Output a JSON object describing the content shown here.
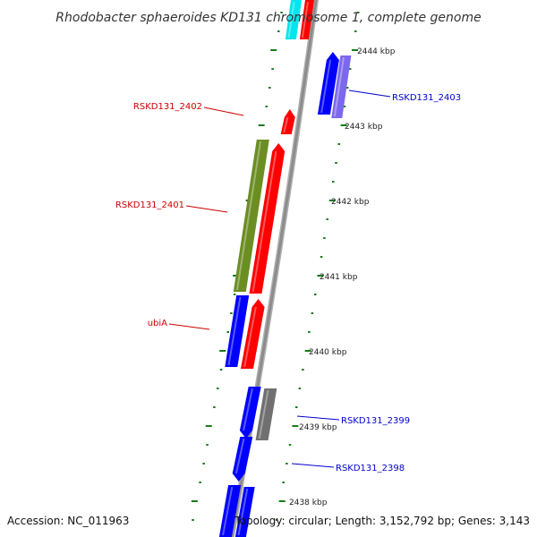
{
  "title": "Rhodobacter sphaeroides KD131 chromosome 1, complete genome",
  "footer": {
    "accession": "Accession: NC_011963",
    "topology": "Topology: circular; Length: 3,152,792 bp; Genes: 3,143"
  },
  "colors": {
    "backbone": "#8c8c8c",
    "tick": "#1a7a1a",
    "forward_gene": "#ff0000",
    "reverse_gene": "#0000ff",
    "green_gene": "#6b8e23",
    "lavender_gene": "#7b68ee",
    "gray_gene": "#707070",
    "cyan_gene": "#00e5ee",
    "label_red": "#cc0000",
    "label_blue": "#0000cc"
  },
  "scale": {
    "unit": "kbp",
    "labels": [
      "2444 kbp",
      "2443 kbp",
      "2442 kbp",
      "2441 kbp",
      "2440 kbp",
      "2439 kbp",
      "2438 kbp"
    ]
  },
  "gene_labels": [
    {
      "text": "RSKD131_2403",
      "strand": "reverse"
    },
    {
      "text": "RSKD131_2402",
      "strand": "forward"
    },
    {
      "text": "RSKD131_2401",
      "strand": "forward"
    },
    {
      "text": "ubiA",
      "strand": "forward"
    },
    {
      "text": "RSKD131_2399",
      "strand": "reverse"
    },
    {
      "text": "RSKD131_2398",
      "strand": "reverse"
    }
  ]
}
